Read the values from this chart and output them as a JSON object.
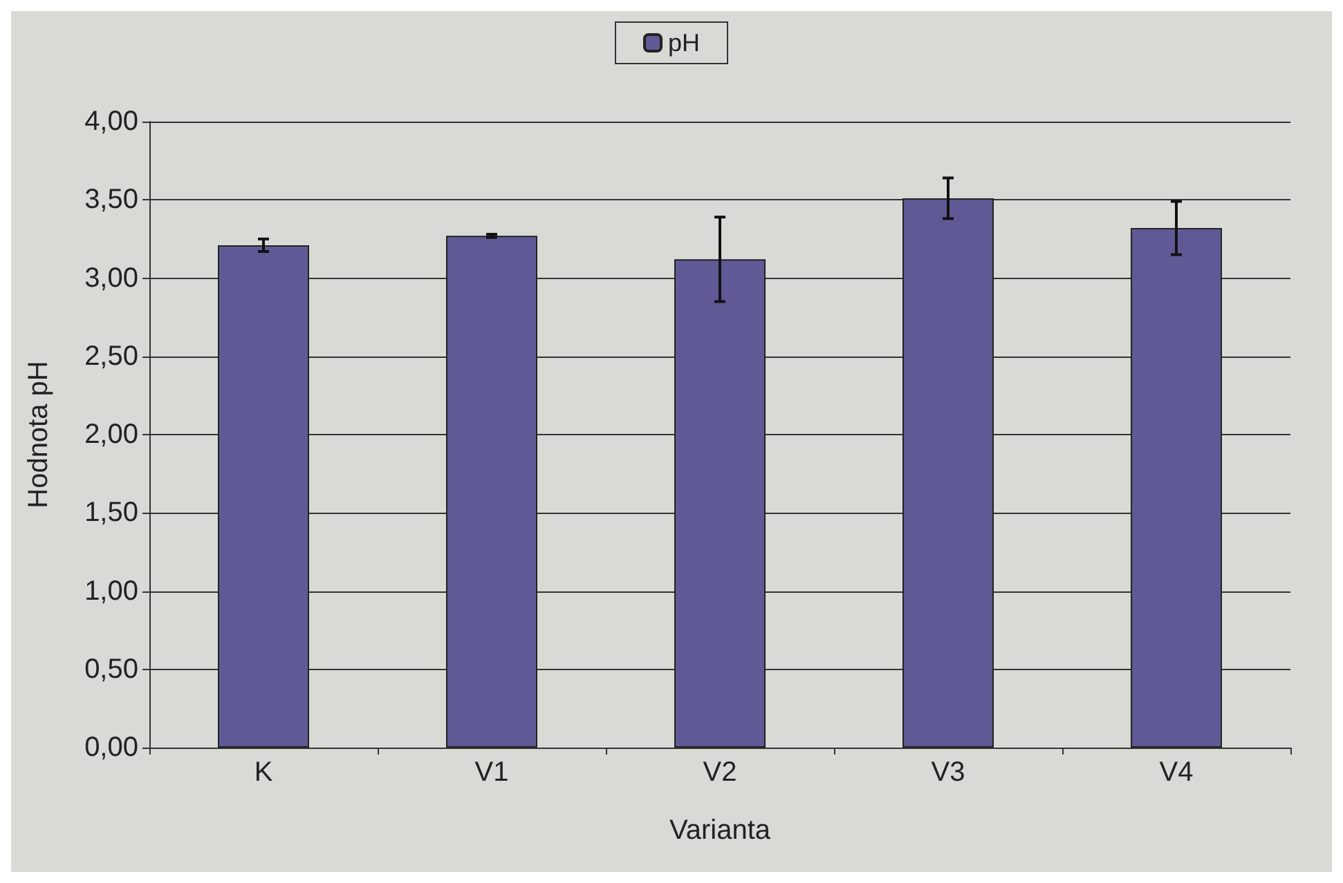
{
  "chart_data": {
    "type": "bar",
    "xlabel": "Varianta",
    "ylabel": "Hodnota pH",
    "categories": [
      "K",
      "V1",
      "V2",
      "V3",
      "V4"
    ],
    "series": [
      {
        "name": "pH",
        "color": "#5f5a96",
        "values": [
          3.21,
          3.27,
          3.12,
          3.51,
          3.32
        ],
        "errors": [
          0.04,
          0.01,
          0.27,
          0.13,
          0.17
        ]
      }
    ],
    "ylim": [
      0,
      4
    ],
    "yticks": [
      {
        "value": 0,
        "label": "0,00"
      },
      {
        "value": 0.5,
        "label": "0,50"
      },
      {
        "value": 1,
        "label": "1,00"
      },
      {
        "value": 1.5,
        "label": "1,50"
      },
      {
        "value": 2,
        "label": "2,00"
      },
      {
        "value": 2.5,
        "label": "2,50"
      },
      {
        "value": 3,
        "label": "3,00"
      },
      {
        "value": 3.5,
        "label": "3,50"
      },
      {
        "value": 4,
        "label": "4,00"
      }
    ],
    "grid": "y",
    "legend": "top"
  }
}
